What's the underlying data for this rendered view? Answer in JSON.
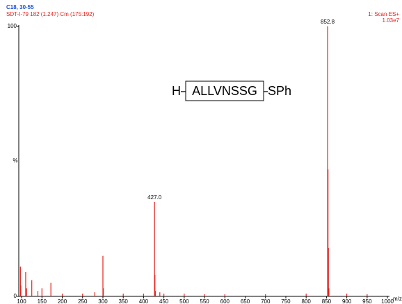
{
  "chart_data": {
    "type": "bar",
    "title": "C18, 30-55",
    "subtitle": "SDT-I-79 182 (1.247) Cm (175:192)",
    "scan_label": "1: Scan ES+",
    "intensity_label": "1.03e7",
    "xlabel": "m/z",
    "ylabel": "%",
    "color": "#e8201a",
    "x": [
      97,
      98,
      110,
      112,
      125,
      140,
      150,
      172,
      200,
      250,
      280,
      300,
      301,
      350,
      400,
      427.0,
      428,
      429,
      440,
      450,
      500,
      550,
      600,
      700,
      800,
      852.8,
      853.8,
      854.8,
      856,
      900,
      950
    ],
    "values": [
      11,
      4,
      9,
      3,
      6,
      2,
      3,
      5,
      1,
      1,
      1.5,
      15,
      3,
      1,
      1,
      35,
      8,
      2,
      1.5,
      1,
      1,
      0.8,
      0.8,
      0.8,
      1,
      100,
      47,
      18,
      3,
      1,
      0.8
    ],
    "peak_labels": [
      null,
      null,
      null,
      null,
      null,
      null,
      null,
      null,
      null,
      null,
      null,
      null,
      null,
      null,
      null,
      "427.0",
      null,
      null,
      null,
      null,
      null,
      null,
      null,
      null,
      null,
      "852.8",
      null,
      null,
      null,
      null,
      null
    ],
    "xlim": [
      93,
      1005
    ],
    "xticks": [
      100,
      150,
      200,
      250,
      300,
      350,
      400,
      450,
      500,
      550,
      600,
      650,
      700,
      750,
      800,
      850,
      900,
      950,
      1000
    ],
    "ylim": [
      0,
      100
    ],
    "yticks": [
      0,
      100
    ],
    "structure": {
      "prefix": "H",
      "core": "ALLVNSSG",
      "suffix": "SPh"
    }
  }
}
